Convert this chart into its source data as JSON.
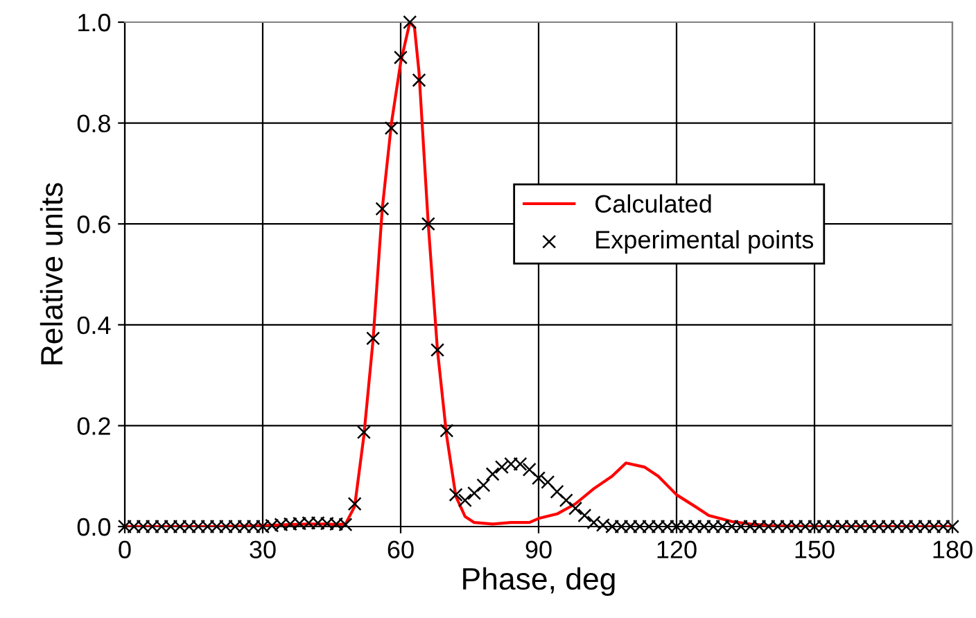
{
  "chart_data": {
    "type": "line",
    "xlabel": "Phase, deg",
    "ylabel": "Relative units",
    "xlim": [
      0,
      180
    ],
    "xticks": [
      0,
      30,
      60,
      90,
      120,
      150,
      180
    ],
    "ylim": [
      0,
      1
    ],
    "yticks": [
      {
        "value": 0,
        "label": "0.0"
      },
      {
        "value": 0.2,
        "label": "0.2"
      },
      {
        "value": 0.4,
        "label": "0.4"
      },
      {
        "value": 0.6,
        "label": "0.6"
      },
      {
        "value": 0.8,
        "label": "0.8"
      },
      {
        "value": 1,
        "label": "1.0"
      }
    ],
    "grid": true,
    "legend": "right",
    "series": [
      {
        "name": "Calculated",
        "color": "#ff0000",
        "marker": "none",
        "line_style": "solid",
        "x": [
          0,
          10,
          20,
          30,
          36,
          40,
          44,
          46,
          48,
          50,
          52,
          54,
          56,
          58,
          60,
          62,
          63,
          64,
          66,
          68,
          70,
          72,
          74,
          76,
          80,
          84,
          88,
          90,
          94,
          98,
          102,
          106,
          109,
          113,
          116,
          120,
          124,
          127,
          132,
          136,
          140,
          150,
          160,
          170,
          180
        ],
        "values": [
          0,
          0,
          0,
          0.002,
          0.004,
          0.005,
          0.005,
          0.004,
          0.005,
          0.04,
          0.18,
          0.37,
          0.63,
          0.8,
          0.92,
          1.0,
          0.99,
          0.9,
          0.6,
          0.35,
          0.18,
          0.06,
          0.02,
          0.008,
          0.005,
          0.008,
          0.008,
          0.016,
          0.025,
          0.045,
          0.075,
          0.1,
          0.126,
          0.118,
          0.1,
          0.063,
          0.04,
          0.022,
          0.01,
          0.005,
          0.002,
          0,
          0,
          0,
          0
        ]
      },
      {
        "name": "Experimental points",
        "type": "scatter",
        "color": "#000000",
        "marker": "cross",
        "x": [
          0,
          2,
          4,
          6,
          8,
          10,
          12,
          14,
          16,
          18,
          20,
          22,
          24,
          26,
          28,
          30,
          32,
          34,
          36,
          38,
          40,
          42,
          44,
          46,
          48,
          50,
          52,
          54,
          56,
          58,
          60,
          62,
          64,
          66,
          68,
          70,
          72,
          74,
          76,
          78,
          80,
          82,
          84,
          86,
          88,
          90,
          92,
          94,
          96,
          98,
          100,
          102,
          104,
          106,
          108,
          110,
          112,
          114,
          116,
          118,
          120,
          122,
          124,
          126,
          128,
          130,
          132,
          134,
          136,
          138,
          140,
          142,
          144,
          146,
          148,
          150,
          152,
          154,
          156,
          158,
          160,
          162,
          164,
          166,
          168,
          170,
          172,
          174,
          176,
          178,
          180
        ],
        "values": [
          0,
          0,
          0,
          0,
          0,
          0,
          0,
          0,
          0,
          0,
          0,
          0,
          0,
          0,
          0,
          0,
          0.002,
          0.004,
          0.005,
          0.006,
          0.007,
          0.007,
          0.006,
          0.005,
          0.004,
          0.045,
          0.187,
          0.373,
          0.63,
          0.79,
          0.93,
          1.0,
          0.885,
          0.6,
          0.35,
          0.19,
          0.063,
          0.052,
          0.066,
          0.082,
          0.104,
          0.118,
          0.124,
          0.124,
          0.113,
          0.096,
          0.088,
          0.069,
          0.052,
          0.036,
          0.022,
          0.008,
          0.003,
          0,
          0,
          0,
          0,
          0,
          0,
          0,
          0,
          0,
          0,
          0,
          0,
          0,
          0,
          0,
          0,
          0,
          0,
          0,
          0,
          0,
          0,
          0,
          0,
          0,
          0,
          0,
          0,
          0,
          0,
          0,
          0,
          0,
          0,
          0,
          0,
          0,
          0
        ]
      }
    ]
  }
}
